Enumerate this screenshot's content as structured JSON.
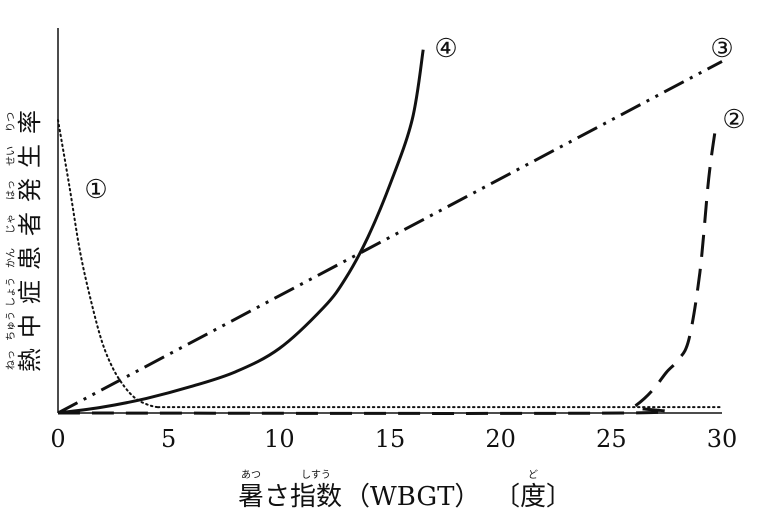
{
  "chart_data": {
    "type": "line",
    "xlim": [
      0,
      30
    ],
    "ylim": [
      0,
      100
    ],
    "x_ticks": [
      "0",
      "5",
      "10",
      "15",
      "20",
      "25",
      "30"
    ],
    "grid": false,
    "xlabel": {
      "parts": [
        {
          "text": "暑",
          "ruby": "あつ"
        },
        {
          "text": "さ",
          "ruby": ""
        },
        {
          "text": "指数",
          "ruby": "しすう"
        },
        {
          "text": "（WBGT）",
          "ruby": ""
        },
        {
          "text": "〔",
          "ruby": ""
        },
        {
          "text": "度",
          "ruby": "ど"
        },
        {
          "text": "〕",
          "ruby": ""
        }
      ]
    },
    "ylabel": {
      "parts": [
        {
          "text": "熱",
          "ruby": "ねっ"
        },
        {
          "text": "中",
          "ruby": "ちゅう"
        },
        {
          "text": "症",
          "ruby": "しょう"
        },
        {
          "text": "患",
          "ruby": "かん"
        },
        {
          "text": "者",
          "ruby": "じゃ"
        },
        {
          "text": "発",
          "ruby": "はっ"
        },
        {
          "text": "生",
          "ruby": "せい"
        },
        {
          "text": "率",
          "ruby": "りつ"
        }
      ]
    },
    "series": [
      {
        "name": "①",
        "style": "dotted",
        "x": [
          0,
          0.5,
          1,
          1.5,
          2,
          2.5,
          3,
          3.5,
          4,
          4.5,
          5,
          10,
          20,
          30
        ],
        "y": [
          100,
          78,
          55,
          38,
          24,
          15,
          9,
          5,
          3,
          2,
          2,
          2,
          2,
          2
        ]
      },
      {
        "name": "②",
        "style": "dashed",
        "x": [
          0,
          25.5,
          26,
          26.5,
          27,
          27.5,
          28,
          28.5,
          29,
          29.4,
          29.7
        ],
        "y": [
          0,
          0,
          2,
          5,
          9,
          14,
          18,
          25,
          48,
          80,
          97
        ]
      },
      {
        "name": "③",
        "style": "dashdotdot",
        "x": [
          0,
          30
        ],
        "y": [
          0,
          120
        ]
      },
      {
        "name": "④",
        "style": "solid",
        "x": [
          0,
          2,
          4,
          6,
          8,
          10,
          12,
          13,
          14,
          15,
          16,
          16.5
        ],
        "y": [
          0,
          2,
          5,
          9,
          14,
          22,
          36,
          46,
          60,
          78,
          100,
          124
        ]
      }
    ],
    "series_label_positions": [
      "left-of-curve",
      "end",
      "end",
      "end"
    ]
  }
}
